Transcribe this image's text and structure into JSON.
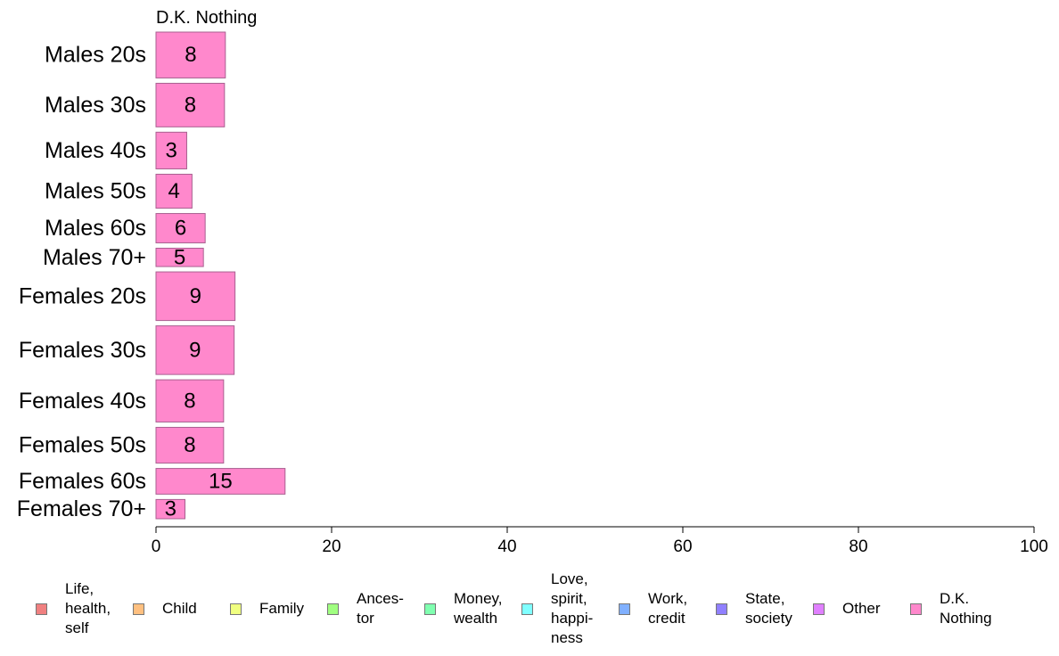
{
  "chart_data": {
    "type": "bar",
    "orientation": "horizontal",
    "series_title": "D.K. Nothing",
    "categories": [
      "Males 20s",
      "Males 30s",
      "Males 40s",
      "Males 50s",
      "Males 60s",
      "Males 70+",
      "Females 20s",
      "Females 30s",
      "Females 40s",
      "Females 50s",
      "Females 60s",
      "Females 70+"
    ],
    "values": [
      8,
      8,
      3,
      4,
      6,
      5,
      9,
      9,
      8,
      8,
      15,
      3
    ],
    "bar_values": [
      7.9,
      7.8,
      3.5,
      4.1,
      5.6,
      5.4,
      9.0,
      8.9,
      7.7,
      7.7,
      14.7,
      3.3
    ],
    "relative_group_sizes": [
      1.0,
      0.95,
      0.8,
      0.74,
      0.64,
      0.4,
      1.06,
      1.06,
      0.92,
      0.78,
      0.56,
      0.42
    ],
    "xlim": [
      0,
      100
    ],
    "xticks": [
      0,
      20,
      40,
      60,
      80,
      100
    ],
    "bar_color": "#ff88cc",
    "bar_edge_color": "#a86090",
    "legend_position": "bottom",
    "legend": [
      {
        "label": "Life,\nhealth,\nself",
        "color": "#f08080"
      },
      {
        "label": "Child",
        "color": "#ffc080"
      },
      {
        "label": "Family",
        "color": "#f0ff80"
      },
      {
        "label": "Ances-\ntor",
        "color": "#a0ff80"
      },
      {
        "label": "Money,\nwealth",
        "color": "#80ffb0"
      },
      {
        "label": "Love,\nspirit,\nhappi-\nness",
        "color": "#80ffff"
      },
      {
        "label": "Work,\ncredit",
        "color": "#80b0ff"
      },
      {
        "label": "State,\nsociety",
        "color": "#9080ff"
      },
      {
        "label": "Other",
        "color": "#e080ff"
      },
      {
        "label": "D.K.\nNothing",
        "color": "#ff88cc"
      }
    ]
  }
}
